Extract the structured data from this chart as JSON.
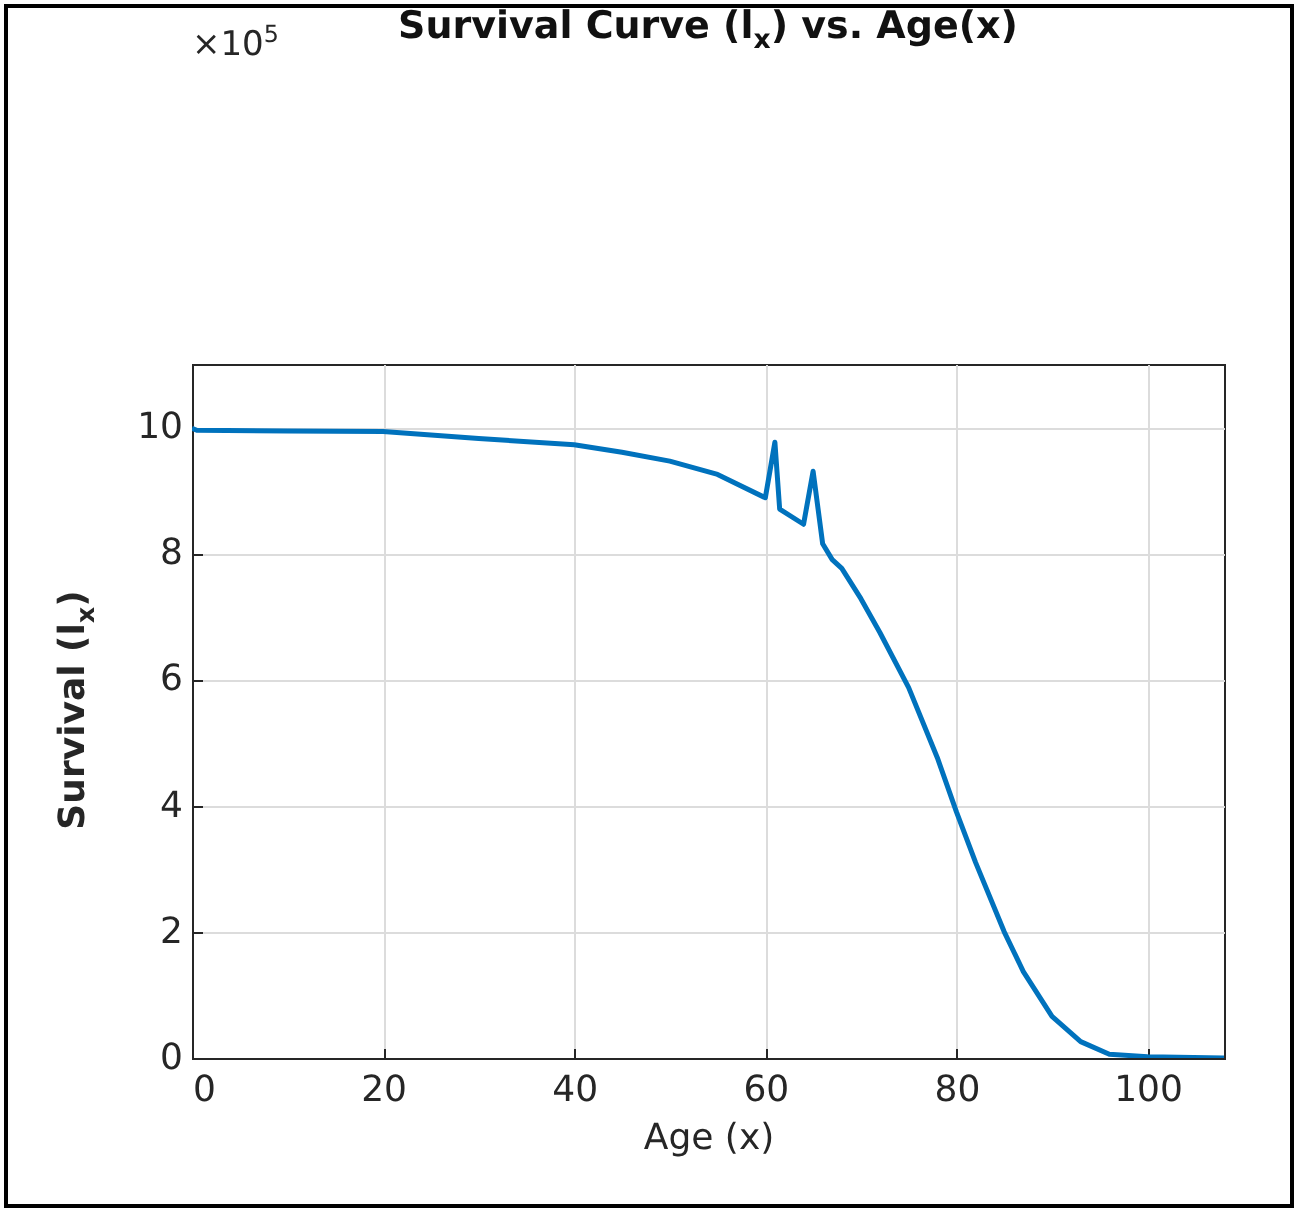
{
  "chart_data": {
    "type": "line",
    "title": "Survival Curve (l$_{x}$) vs. Age(x)",
    "xlabel": "Age (x)",
    "ylabel": "Survival (l$_{x}$)",
    "annotations": [
      "×10$^{5}$"
    ],
    "x": [
      0,
      0.5,
      10,
      20,
      30,
      40,
      45,
      50,
      55,
      60,
      61,
      61.5,
      64,
      65,
      66,
      67,
      68,
      70,
      72,
      75,
      78,
      80,
      82,
      85,
      87,
      90,
      93,
      96,
      100,
      108
    ],
    "series": [
      {
        "color": "#0072bd",
        "values": [
          9.98,
          9.95,
          9.94,
          9.93,
          9.82,
          9.72,
          9.6,
          9.46,
          9.25,
          8.88,
          9.76,
          8.7,
          8.46,
          9.3,
          8.15,
          7.9,
          7.76,
          7.28,
          6.74,
          5.87,
          4.76,
          3.9,
          3.1,
          2.0,
          1.37,
          0.66,
          0.26,
          0.06,
          0.02,
          0
        ]
      }
    ],
    "xlim": [
      0,
      108
    ],
    "xticks": [
      0,
      20,
      40,
      60,
      80,
      100
    ],
    "ylim": [
      0,
      11
    ],
    "yticks": [
      0,
      2,
      4,
      6,
      8,
      10
    ],
    "grid": true,
    "line_style": "solid",
    "marker": "none"
  }
}
